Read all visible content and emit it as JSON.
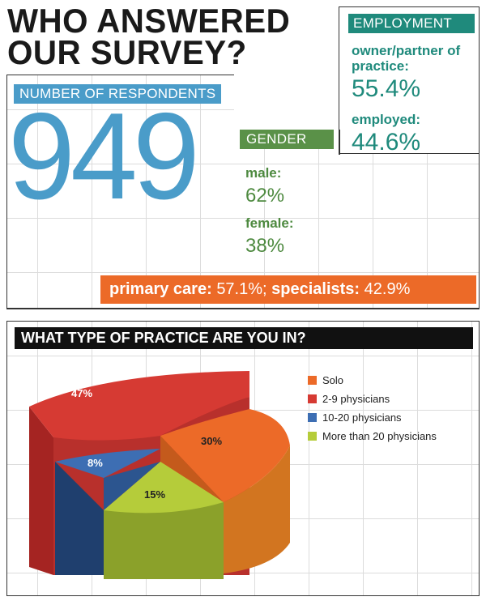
{
  "title": {
    "line1": "WHO ANSWERED",
    "line2": "OUR SURVEY?"
  },
  "respondents": {
    "label": "NUMBER OF RESPONDENTS",
    "value": "949"
  },
  "employment": {
    "label": "EMPLOYMENT",
    "items": [
      {
        "label": "owner/partner of practice:",
        "value": "55.4%"
      },
      {
        "label": "employed:",
        "value": "44.6%"
      }
    ]
  },
  "gender": {
    "label": "GENDER",
    "items": [
      {
        "label": "male:",
        "value": "62%"
      },
      {
        "label": "female:",
        "value": "38%"
      }
    ]
  },
  "specialty": {
    "primary_label": "primary care:",
    "primary_value": "57.1%;",
    "specialists_label": "specialists:",
    "specialists_value": "42.9%"
  },
  "practice_section": {
    "heading": "WHAT TYPE OF PRACTICE ARE YOU IN?"
  },
  "colors": {
    "blue": "#4a9cc9",
    "teal": "#1f8a7c",
    "green": "#5a9148",
    "orange": "#ec6a28",
    "black": "#111111"
  },
  "chart_data": {
    "type": "pie",
    "title": "WHAT TYPE OF PRACTICE ARE YOU IN?",
    "categories": [
      "Solo",
      "2-9 physicians",
      "10-20 physicians",
      "More than 20 physicians"
    ],
    "values": [
      30,
      47,
      8,
      15
    ],
    "data_labels": [
      "30%",
      "47%",
      "8%",
      "15%"
    ],
    "colors": [
      "#ec6a28",
      "#d63a33",
      "#3d6eb3",
      "#b5cc3a"
    ],
    "legend_position": "right",
    "style": "3d-exploded"
  }
}
